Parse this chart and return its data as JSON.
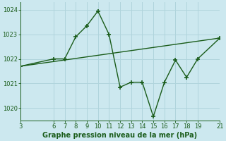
{
  "title": "Graphe pression niveau de la mer (hPa)",
  "background_color": "#cce8ef",
  "grid_color": "#b0d4dc",
  "line_color": "#1a5c1a",
  "marker_color": "#1a5c1a",
  "xlim": [
    3,
    21
  ],
  "ylim": [
    1019.5,
    1024.3
  ],
  "yticks": [
    1020,
    1021,
    1022,
    1023,
    1024
  ],
  "xticks": [
    3,
    6,
    7,
    8,
    9,
    10,
    11,
    12,
    13,
    14,
    15,
    16,
    17,
    18,
    19,
    21
  ],
  "series1_x": [
    3,
    6,
    7,
    8,
    9,
    10,
    11,
    12,
    13,
    14,
    15,
    16,
    17,
    18,
    19,
    21
  ],
  "series1_y": [
    1021.7,
    1022.0,
    1022.0,
    1022.9,
    1023.35,
    1023.95,
    1023.0,
    1020.85,
    1021.05,
    1021.05,
    1019.65,
    1021.05,
    1021.95,
    1021.25,
    1022.0,
    1022.85
  ],
  "series2_x": [
    3,
    21
  ],
  "series2_y": [
    1021.7,
    1022.85
  ],
  "xlabel_fontsize": 7,
  "tick_fontsize": 6,
  "linewidth": 1.0,
  "markersize": 4
}
